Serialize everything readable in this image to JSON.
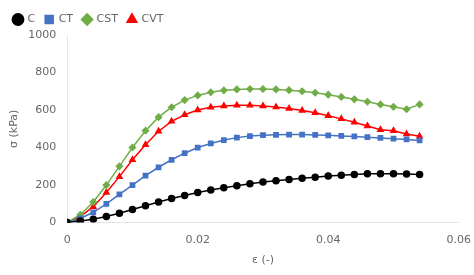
{
  "chart_data": {
    "type": "line",
    "xlabel": "ε (-)",
    "ylabel": "σ (kPa)",
    "xlim": [
      0,
      0.06
    ],
    "ylim": [
      0,
      1000
    ],
    "xticks": [
      0,
      {
        "value": 0.01,
        "label": null
      },
      0.02,
      {
        "value": 0.03,
        "label": null
      },
      0.04,
      {
        "value": 0.05,
        "label": null
      },
      0.06
    ],
    "yticks": [
      0,
      200,
      400,
      600,
      800,
      1000
    ],
    "grid": false,
    "legend": "upper left",
    "x": [
      0,
      0.002,
      0.004,
      0.006,
      0.008,
      0.01,
      0.012,
      0.014,
      0.016,
      0.018,
      0.02,
      0.022,
      0.024,
      0.026,
      0.028,
      0.03,
      0.032,
      0.034,
      0.036,
      0.038,
      0.04,
      0.042,
      0.044,
      0.046,
      0.048,
      0.05,
      0.052,
      0.054
    ],
    "series": [
      {
        "name": "C",
        "color": "black",
        "marker": "circle",
        "values": [
          0,
          8,
          18,
          32,
          50,
          70,
          90,
          110,
          128,
          145,
          160,
          174,
          186,
          197,
          207,
          216,
          223,
          230,
          236,
          242,
          248,
          253,
          257,
          260,
          261,
          261,
          259,
          257
        ]
      },
      {
        "name": "CT",
        "color": "#4472c4",
        "marker": "square",
        "values": [
          0,
          22,
          55,
          100,
          150,
          200,
          250,
          295,
          335,
          370,
          400,
          422,
          440,
          453,
          461,
          466,
          468,
          469,
          469,
          467,
          465,
          462,
          459,
          455,
          451,
          447,
          443,
          438
        ]
      },
      {
        "name": "CST",
        "color": "#70ad47",
        "marker": "diamond",
        "values": [
          0,
          42,
          110,
          200,
          300,
          400,
          490,
          562,
          615,
          653,
          678,
          695,
          705,
          710,
          712,
          712,
          710,
          706,
          700,
          692,
          682,
          670,
          657,
          644,
          630,
          617,
          604,
          630
        ]
      },
      {
        "name": "CVT",
        "color": "#ff0000",
        "marker": "triangle",
        "values": [
          0,
          32,
          85,
          160,
          245,
          335,
          415,
          487,
          540,
          575,
          600,
          615,
          622,
          625,
          625,
          622,
          616,
          608,
          598,
          585,
          570,
          553,
          535,
          515,
          495,
          490,
          472,
          460
        ]
      }
    ]
  }
}
